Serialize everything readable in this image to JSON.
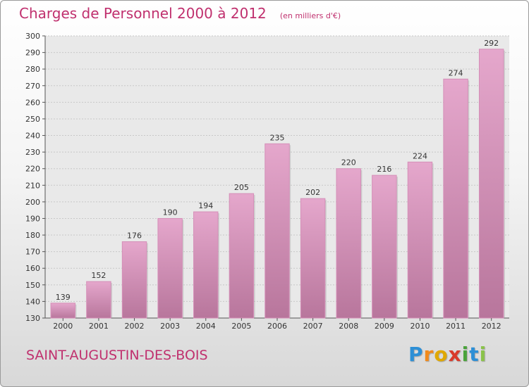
{
  "chart_data": {
    "type": "bar",
    "title": "Charges de Personnel 2000 à 2012",
    "subtitle": "(en milliers d'€)",
    "categories": [
      "2000",
      "2001",
      "2002",
      "2003",
      "2004",
      "2005",
      "2006",
      "2007",
      "2008",
      "2009",
      "2010",
      "2011",
      "2012"
    ],
    "values": [
      139,
      152,
      176,
      190,
      194,
      205,
      235,
      202,
      220,
      216,
      224,
      274,
      292
    ],
    "ylim": [
      130,
      300
    ],
    "yticks": [
      130,
      140,
      150,
      160,
      170,
      180,
      190,
      200,
      210,
      220,
      230,
      240,
      250,
      260,
      270,
      280,
      290,
      300
    ],
    "grid": true,
    "bar_color_top": "#e5a7cc",
    "bar_color_bottom": "#b8769c"
  },
  "footer": {
    "commune": "SAINT-AUGUSTIN-DES-BOIS",
    "logo_letters": [
      "P",
      "r",
      "o",
      "x",
      "i",
      "t",
      "i"
    ],
    "logo_colors": [
      "#2d8fd6",
      "#f08a1c",
      "#e0a800",
      "#d93a2b",
      "#4aa33b",
      "#2d8fd6",
      "#8bc34a"
    ]
  }
}
